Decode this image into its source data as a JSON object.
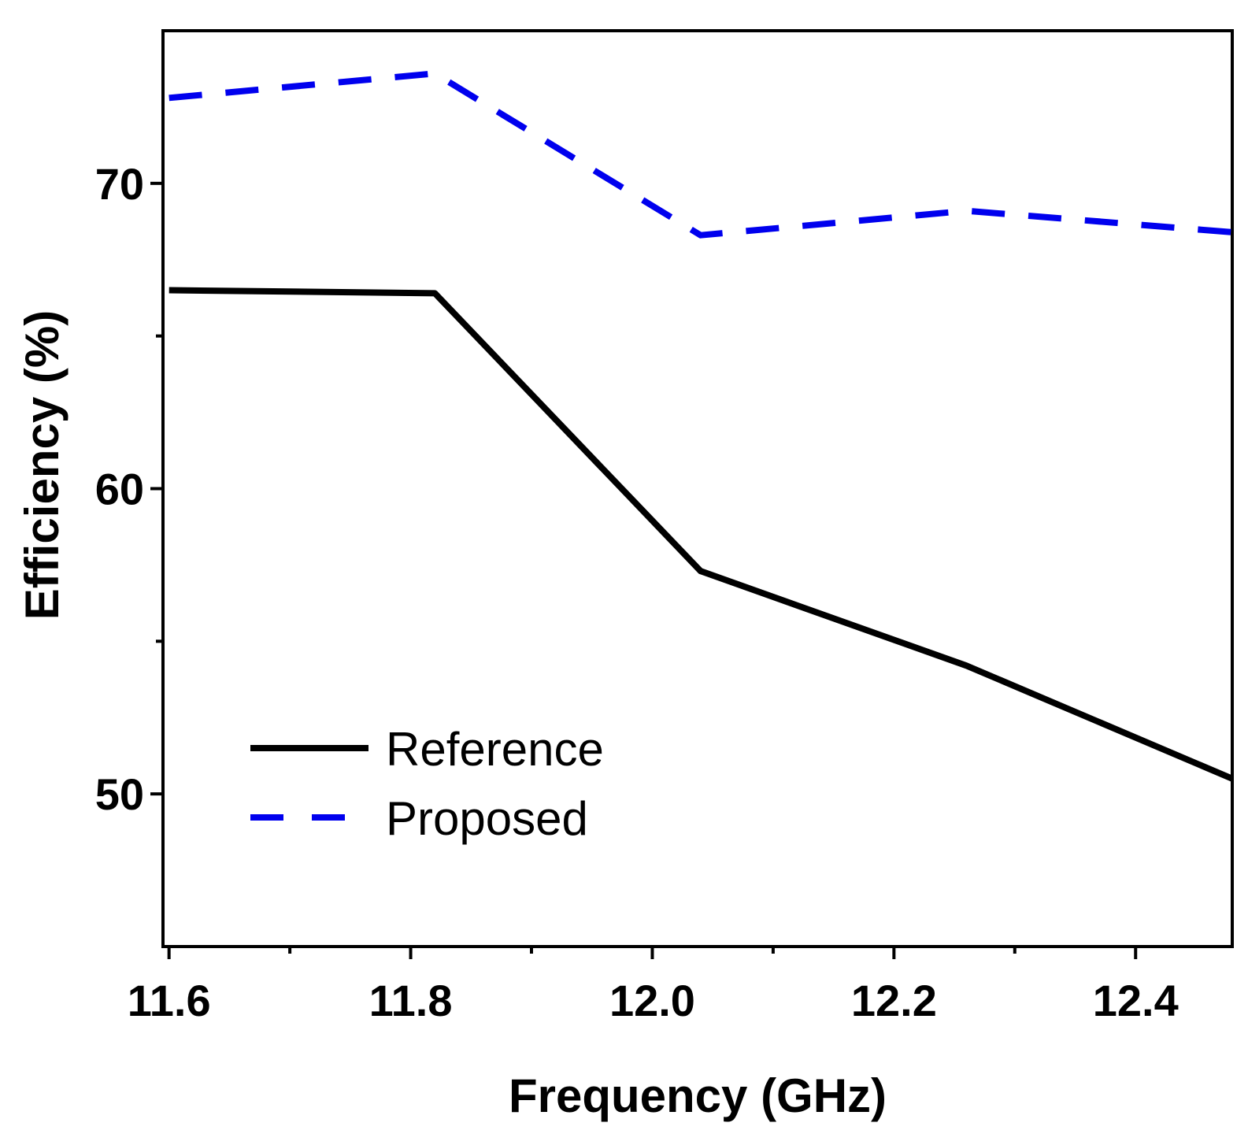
{
  "chart_data": {
    "type": "line",
    "title": "",
    "xlabel": "Frequency (GHz)",
    "ylabel": "Efficiency (%)",
    "xlim": [
      11.595,
      12.48
    ],
    "ylim": [
      45,
      75
    ],
    "x_ticks": [
      11.6,
      11.8,
      12.0,
      12.2,
      12.4
    ],
    "x_tick_labels": [
      "11.6",
      "11.8",
      "12.0",
      "12.2",
      "12.4"
    ],
    "x_minor_ticks": [
      11.7,
      11.9,
      12.1,
      12.3
    ],
    "y_ticks": [
      50,
      60,
      70
    ],
    "y_tick_labels": [
      "50",
      "60",
      "70"
    ],
    "y_minor_ticks": [
      55,
      65
    ],
    "grid": false,
    "legend_position": "lower-left",
    "series": [
      {
        "name": "Reference",
        "color": "#000000",
        "style": "solid",
        "x": [
          11.6,
          11.82,
          12.04,
          12.26,
          12.48
        ],
        "values": [
          66.5,
          66.4,
          57.3,
          54.2,
          50.5
        ]
      },
      {
        "name": "Proposed",
        "color": "#0000ee",
        "style": "dashed",
        "x": [
          11.6,
          11.82,
          12.04,
          12.26,
          12.48
        ],
        "values": [
          72.8,
          73.6,
          68.3,
          69.1,
          68.4
        ]
      }
    ]
  }
}
